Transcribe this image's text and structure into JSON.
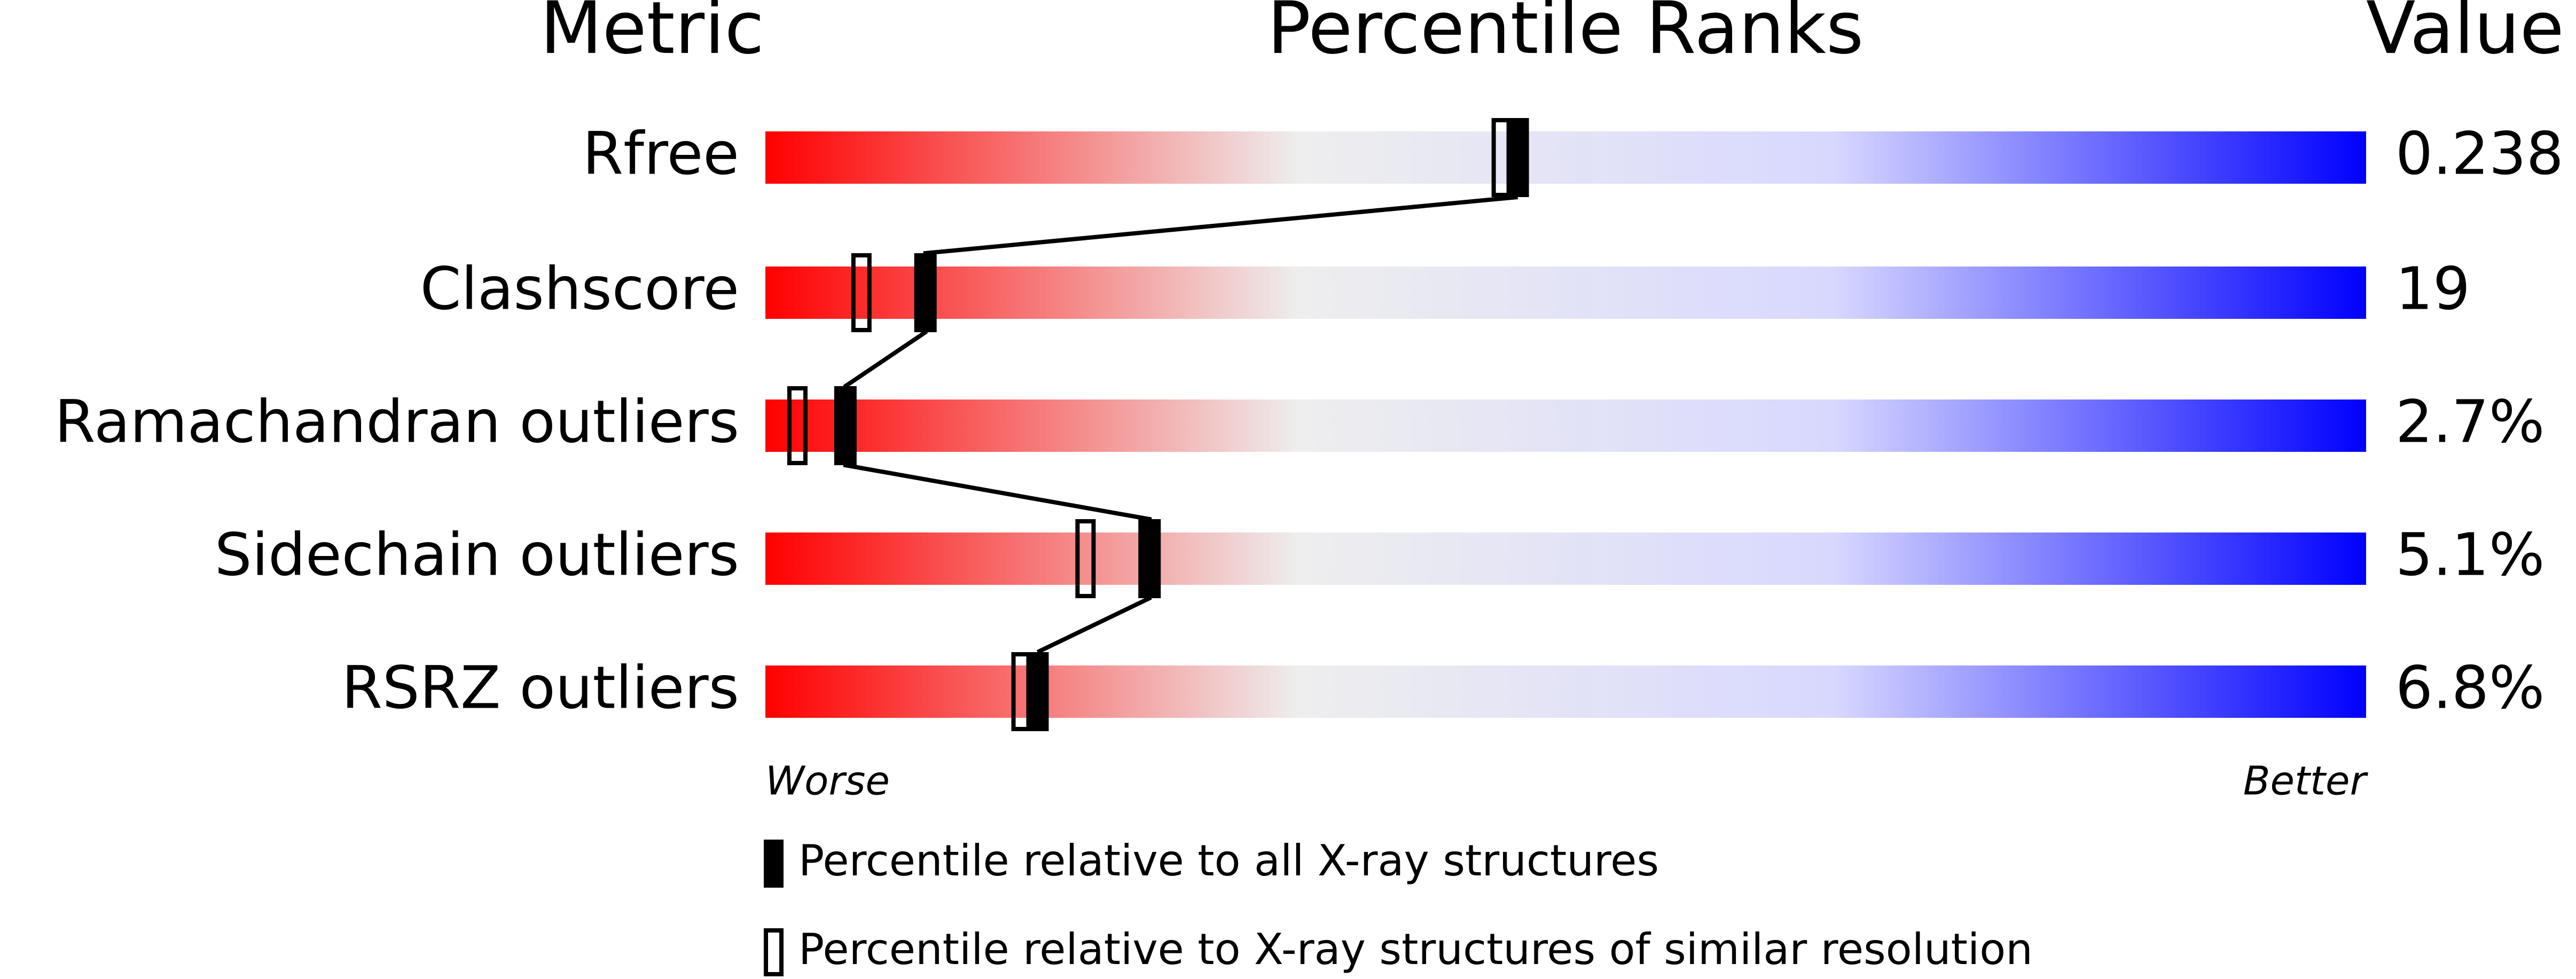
{
  "chart_data": {
    "type": "percentile-slider",
    "headers": [
      "Metric",
      "Percentile Ranks",
      "Value"
    ],
    "categories": [
      "Rfree",
      "Clashscore",
      "Ramachandran outliers",
      "Sidechain outliers",
      "RSRZ outliers"
    ],
    "metric_values": [
      "0.238",
      "19",
      "2.7%",
      "5.1%",
      "6.8%"
    ],
    "series": [
      {
        "name": "Percentile relative to all X-ray structures",
        "color": "#000000",
        "values": [
          47,
          10,
          5,
          24,
          17
        ]
      },
      {
        "name": "Percentile relative to X-ray structures of similar resolution",
        "color": "#000000",
        "values": [
          46,
          6,
          2,
          20,
          16
        ]
      }
    ],
    "xlim": [
      0,
      100
    ],
    "axis_labels": [
      "Worse",
      "Better"
    ],
    "gradient": [
      "#ff0000",
      "#eeeeee",
      "#d8d8ff",
      "#0000ff"
    ]
  }
}
